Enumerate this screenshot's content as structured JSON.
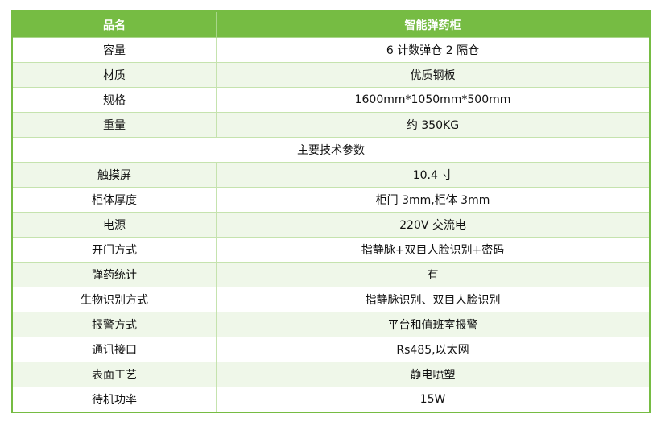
{
  "header": {
    "col1": "品名",
    "col2": "智能弹药柜"
  },
  "rows": [
    {
      "name": "容量",
      "value": "6 计数弹仓 2 隔仓"
    },
    {
      "name": "材质",
      "value": "优质钢板"
    },
    {
      "name": "规格",
      "value": "1600mm*1050mm*500mm"
    },
    {
      "name": "重量",
      "value": "约 350KG"
    }
  ],
  "section": "主要技术参数",
  "params": [
    {
      "name": "触摸屏",
      "value": "10.4 寸"
    },
    {
      "name": "柜体厚度",
      "value": "柜门 3mm,柜体 3mm"
    },
    {
      "name": "电源",
      "value": "220V 交流电"
    },
    {
      "name": "开门方式",
      "value": "指静脉+双目人脸识别+密码"
    },
    {
      "name": "弹药统计",
      "value": "有"
    },
    {
      "name": "生物识别方式",
      "value": "指静脉识别、双目人脸识别"
    },
    {
      "name": "报警方式",
      "value": "平台和值班室报警"
    },
    {
      "name": "通讯接口",
      "value": "Rs485,以太网"
    },
    {
      "name": "表面工艺",
      "value": "静电喷塑"
    },
    {
      "name": "待机功率",
      "value": "15W"
    }
  ],
  "colors": {
    "header": "#76bc43",
    "alt_row": "#eff7e9"
  }
}
